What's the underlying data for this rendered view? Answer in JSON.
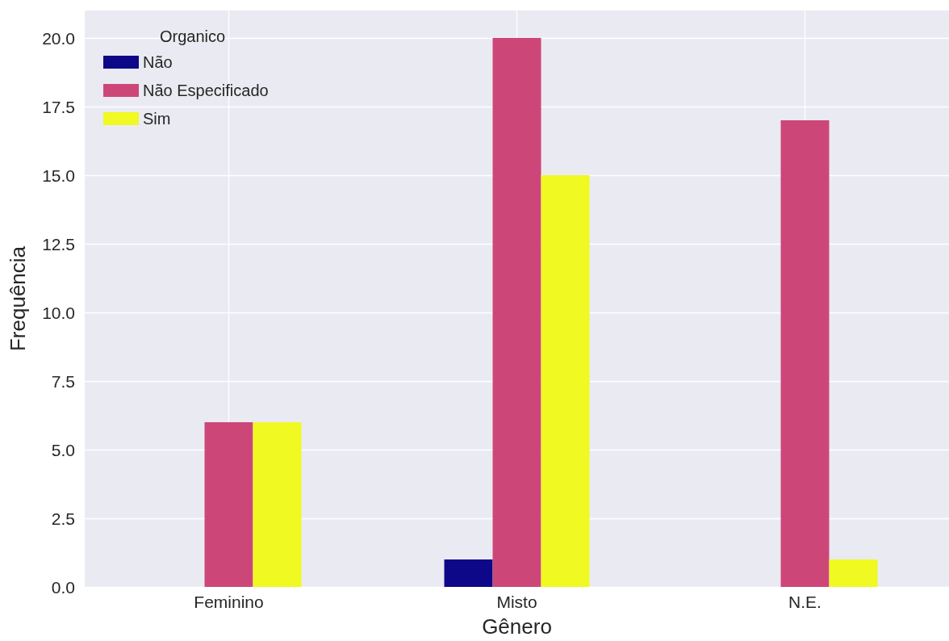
{
  "chart_data": {
    "type": "bar",
    "xlabel": "Gênero",
    "ylabel": "Frequência",
    "legend_title": "Organico",
    "categories": [
      "Feminino",
      "Misto",
      "N.E."
    ],
    "series": [
      {
        "name": "Não",
        "color": "#0d0887",
        "values": [
          0,
          1,
          0
        ]
      },
      {
        "name": "Não Especificado",
        "color": "#cc4778",
        "values": [
          6,
          20,
          17
        ]
      },
      {
        "name": "Sim",
        "color": "#f0f921",
        "values": [
          6,
          15,
          1
        ]
      }
    ],
    "ylim": [
      0,
      21
    ],
    "yticks": [
      {
        "value": 0,
        "label": "0.0"
      },
      {
        "value": 2.5,
        "label": "2.5"
      },
      {
        "value": 5,
        "label": "5.0"
      },
      {
        "value": 7.5,
        "label": "7.5"
      },
      {
        "value": 10,
        "label": "10.0"
      },
      {
        "value": 12.5,
        "label": "12.5"
      },
      {
        "value": 15,
        "label": "15.0"
      },
      {
        "value": 17.5,
        "label": "17.5"
      },
      {
        "value": 20,
        "label": "20.0"
      }
    ],
    "grid": true,
    "legend": "top left"
  }
}
